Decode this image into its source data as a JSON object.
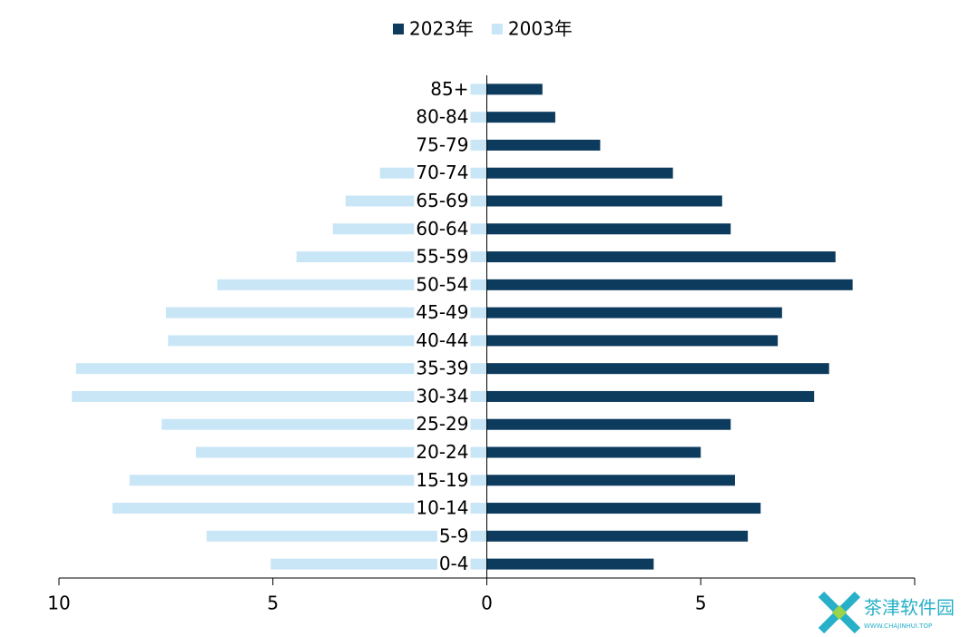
{
  "chart_data": {
    "type": "pyramid",
    "categories": [
      "0-4",
      "5-9",
      "10-14",
      "15-19",
      "20-24",
      "25-29",
      "30-34",
      "35-39",
      "40-44",
      "45-49",
      "50-54",
      "55-59",
      "60-64",
      "65-69",
      "70-74",
      "75-79",
      "80-84",
      "85+"
    ],
    "series": [
      {
        "name": "2023年",
        "color": "#0d3b5e",
        "values": [
          3.9,
          6.1,
          6.4,
          5.8,
          5.0,
          5.7,
          7.65,
          8.0,
          6.8,
          6.9,
          8.55,
          8.15,
          5.7,
          5.5,
          4.35,
          2.65,
          1.6,
          1.3
        ]
      },
      {
        "name": "2003年",
        "color": "#c9e6f7",
        "values": [
          -5.05,
          -6.55,
          -8.75,
          -8.35,
          -6.8,
          -7.6,
          -9.7,
          -9.6,
          -7.45,
          -7.5,
          -6.3,
          -4.45,
          -3.6,
          -3.3,
          -2.5,
          -0.5,
          -0.45,
          -0.4
        ]
      }
    ],
    "xlim": [
      -10,
      10
    ],
    "xticks": [
      {
        "value": -10,
        "label": "10"
      },
      {
        "value": -5,
        "label": "5"
      },
      0,
      5
    ],
    "legend": "top"
  },
  "watermark": {
    "text": "茶津软件园",
    "url": "WWW.CHAJINHUI.TOP"
  }
}
